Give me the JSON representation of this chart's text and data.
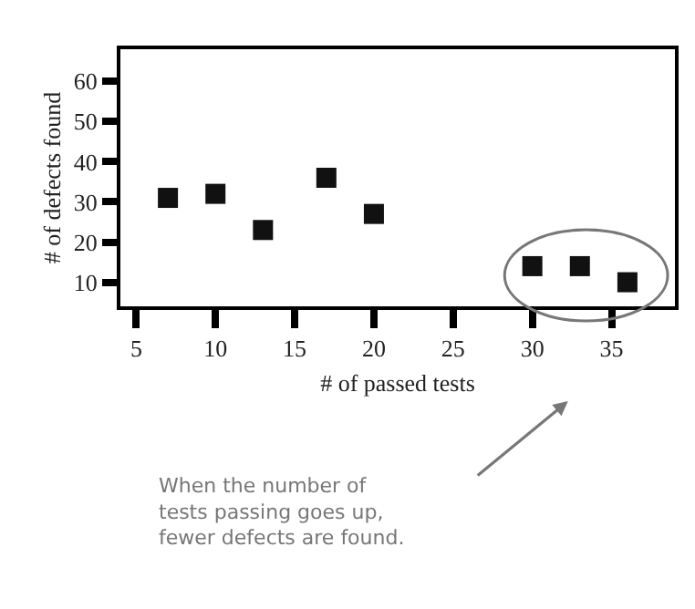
{
  "chart_data": {
    "type": "scatter",
    "xlabel": "# of passed tests",
    "ylabel": "# of defects found",
    "x": [
      7,
      10,
      13,
      17,
      20,
      30,
      33,
      36
    ],
    "values": [
      31,
      32,
      23,
      36,
      27,
      14,
      14,
      10
    ],
    "color": "#111111",
    "marker": "square",
    "xlim": [
      4,
      39
    ],
    "xticks": [
      5,
      10,
      15,
      20,
      25,
      30,
      35
    ],
    "ylim": [
      4,
      68
    ],
    "yticks": [
      10,
      20,
      30,
      40,
      50,
      60
    ],
    "legend": false,
    "annotations": [
      "When the number of\ntests passing goes up,\nfewer defects are found."
    ]
  }
}
